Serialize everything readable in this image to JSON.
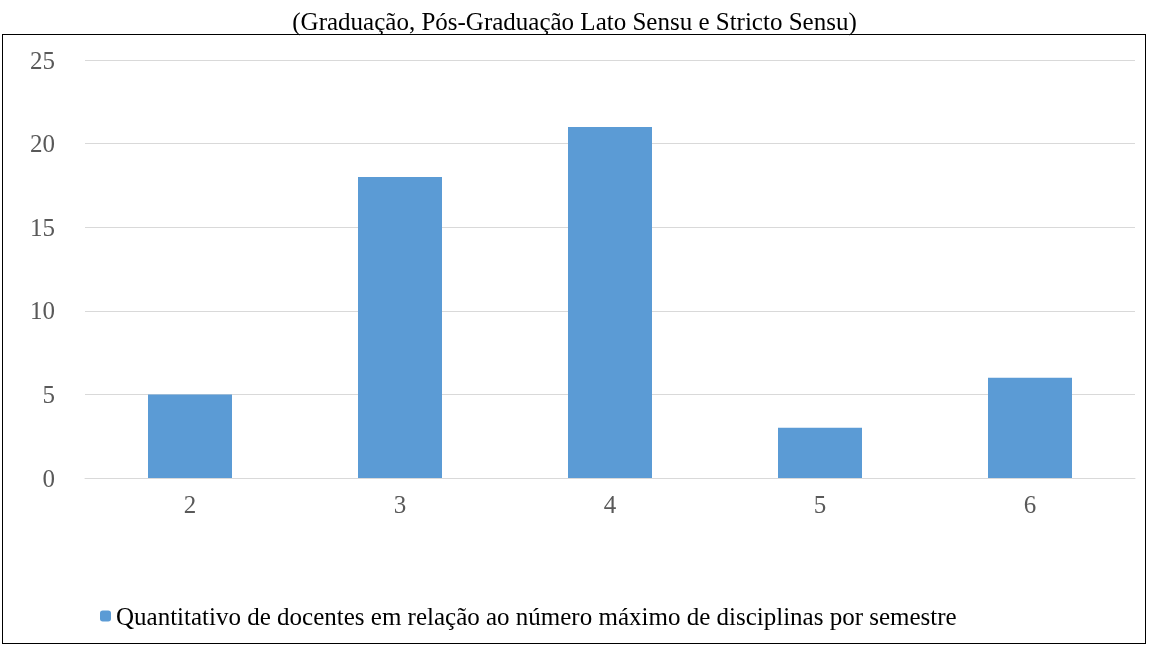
{
  "chart_data": {
    "type": "bar",
    "title": "(Graduação, Pós-Graduação Lato Sensu e Stricto Sensu)",
    "categories": [
      "2",
      "3",
      "4",
      "5",
      "6"
    ],
    "series": [
      {
        "name": "Quantitativo de docentes em relação ao número máximo de disciplinas por semestre",
        "color": "#5b9bd5",
        "values": [
          5,
          18,
          21,
          3,
          6
        ]
      }
    ],
    "ylim": [
      0,
      25
    ],
    "yticks": [
      0,
      5,
      10,
      15,
      20,
      25
    ],
    "grid": "y",
    "legend": "bottom"
  }
}
